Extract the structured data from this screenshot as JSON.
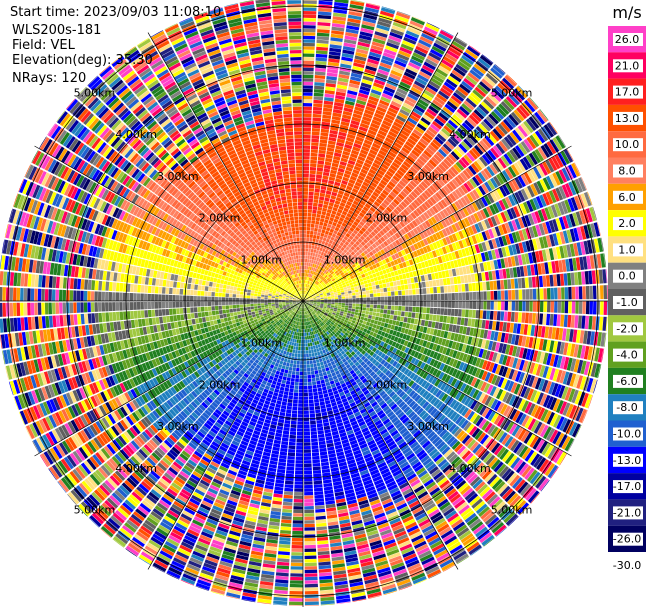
{
  "header": {
    "start_time": "Start time: 2023/09/03 11:08:10",
    "site": "WLS200s-181",
    "field": "Field: VEL",
    "elevation": "Elevation(deg): 35.30",
    "nrays": "NRays: 120"
  },
  "chart_data": {
    "type": "heatmap",
    "projection": "polar",
    "field": "VEL",
    "units": "m/s",
    "nrays": 120,
    "elevation_deg": 35.3,
    "max_range_km": 5.5,
    "range_rings_km": [
      1,
      2,
      3,
      4,
      5
    ],
    "range_ring_labels": [
      "1.00km",
      "2.00km",
      "3.00km",
      "4.00km",
      "5.00km"
    ],
    "radial_lines_deg": [
      0,
      30,
      60,
      90,
      120,
      150,
      180,
      210,
      240,
      270,
      300,
      330
    ],
    "colorbar": {
      "title": "m/s",
      "tick_labels": [
        "26.0",
        "21.0",
        "17.0",
        "13.0",
        "10.0",
        "8.0",
        "6.0",
        "2.0",
        "1.0",
        "0.0",
        "-1.0",
        "-2.0",
        "-4.0",
        "-6.0",
        "-8.0",
        "-10.0",
        "-13.0",
        "-17.0",
        "-21.0",
        "-26.0",
        "-30.0"
      ],
      "colors": [
        "#ff40c8",
        "#ff0060",
        "#ff2020",
        "#ff5000",
        "#ff6a40",
        "#ff8060",
        "#ffa000",
        "#ffff00",
        "#ffe080",
        "#808080",
        "#606060",
        "#a0c840",
        "#60a020",
        "#208020",
        "#2080c0",
        "#2060d0",
        "#0000ff",
        "#0000a0",
        "#202080",
        "#000060"
      ]
    },
    "sectors": {
      "upper_half": "positive velocity, about 10–17 m/s near 1.5–2.5 km, decreasing toward 0 near the centre",
      "lower_half": "negative velocity, about -8 to -13 m/s near 1.5–2.5 km",
      "beyond_km": 3.2,
      "beyond_description": "noise"
    }
  }
}
